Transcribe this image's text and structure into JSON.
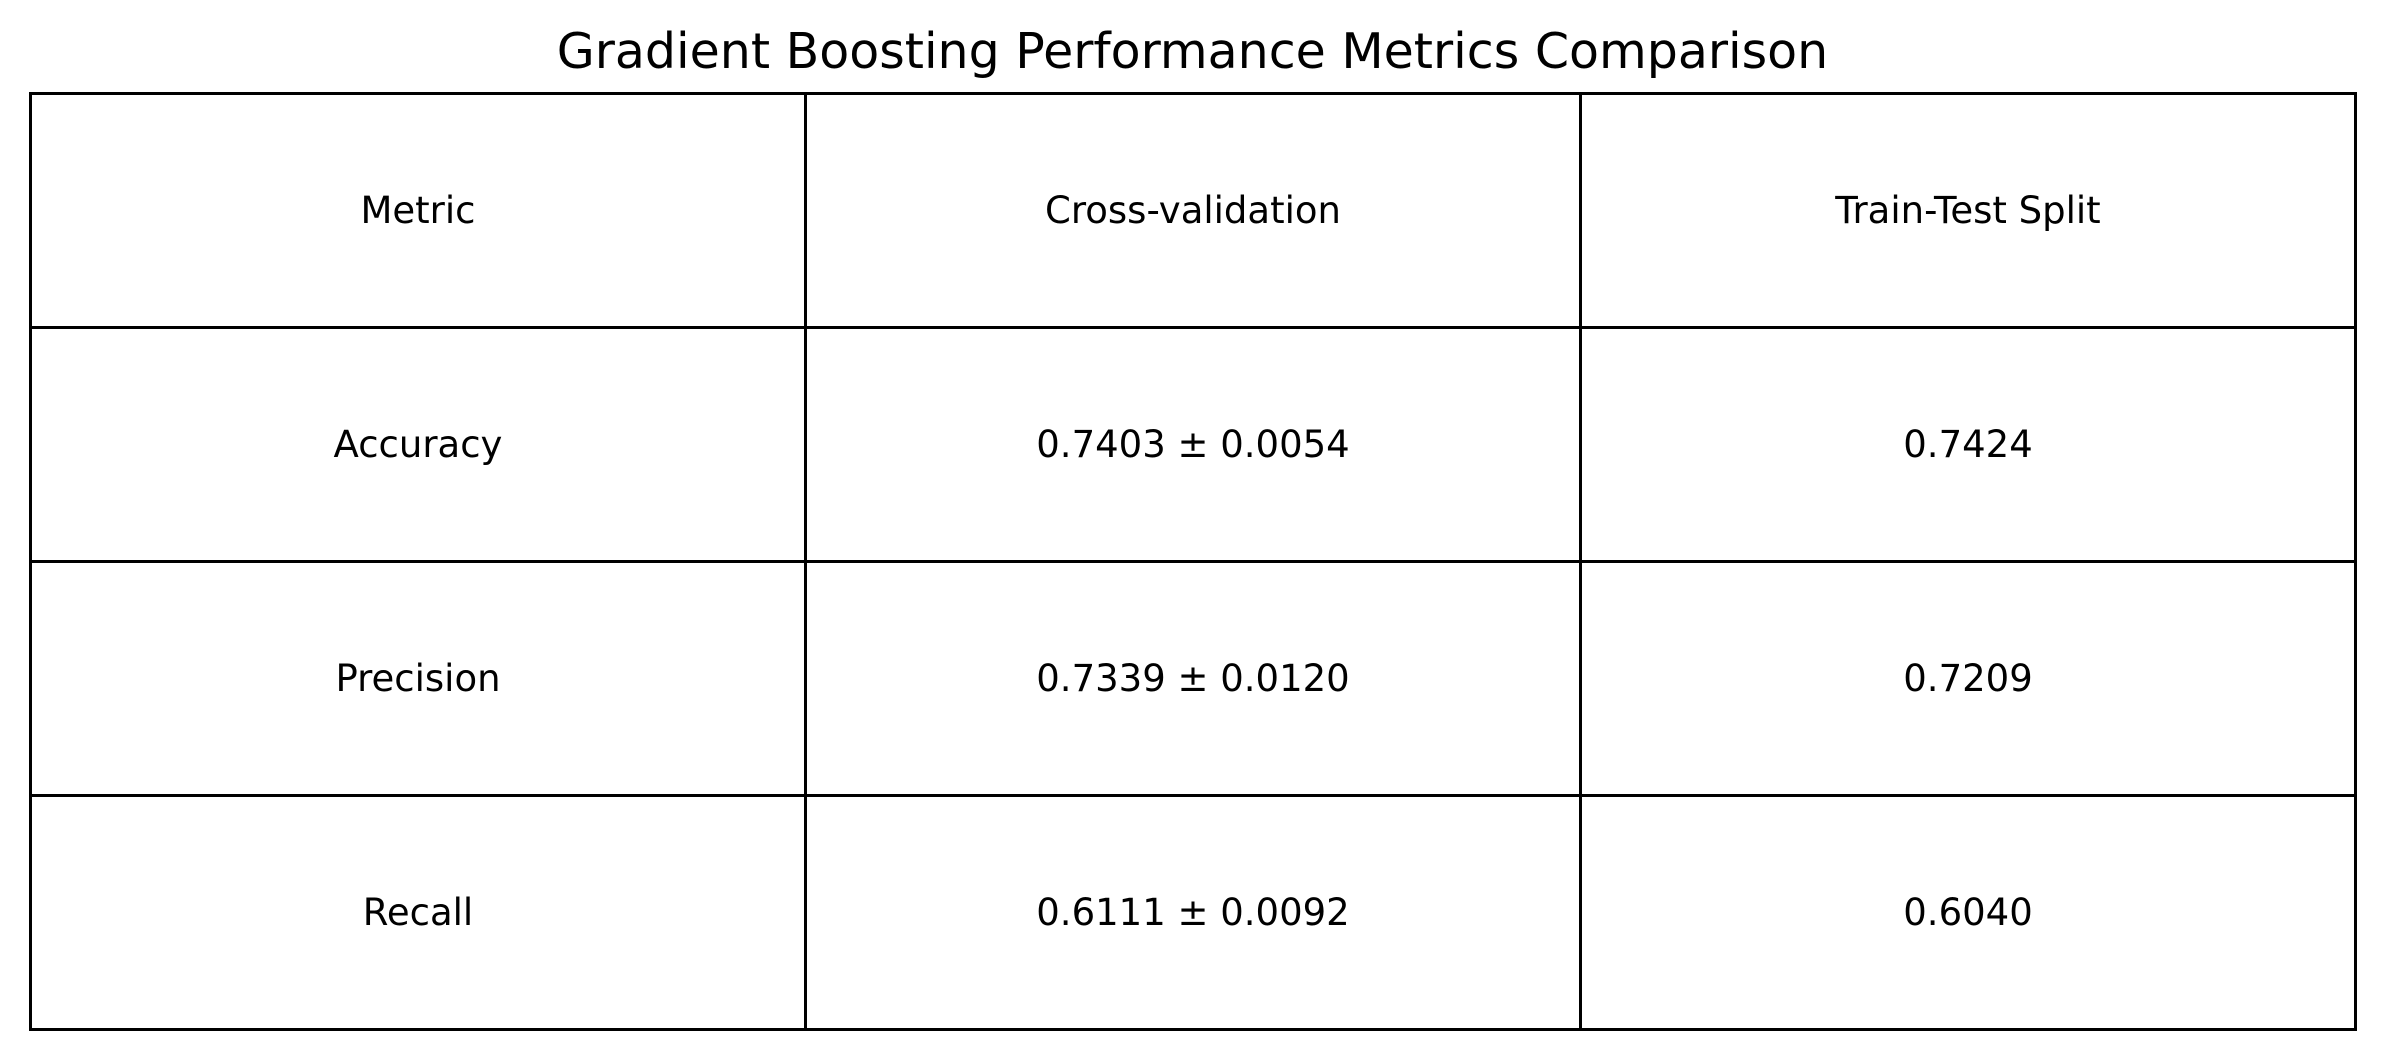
{
  "chart_data": {
    "type": "table",
    "title": "Gradient Boosting Performance Metrics Comparison",
    "columns": [
      "Metric",
      "Cross-validation",
      "Train-Test Split"
    ],
    "rows": [
      [
        "Accuracy",
        "0.7403 ± 0.0054",
        "0.7424"
      ],
      [
        "Precision",
        "0.7339 ± 0.0120",
        "0.7209"
      ],
      [
        "Recall",
        "0.6111 ± 0.0092",
        "0.6040"
      ]
    ]
  }
}
